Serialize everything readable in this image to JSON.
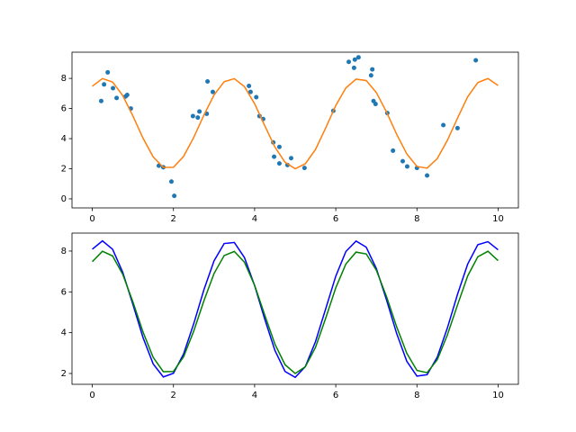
{
  "chart_data": [
    {
      "type": "line",
      "xlim": [
        -0.5,
        10.5
      ],
      "ylim": [
        -0.6,
        9.74
      ],
      "xticks": [
        0,
        2,
        4,
        6,
        8,
        10
      ],
      "yticks": [
        0,
        2,
        4,
        6,
        8
      ],
      "x": [
        0,
        0.25,
        0.5,
        0.75,
        1,
        1.25,
        1.5,
        1.75,
        2,
        2.25,
        2.5,
        2.75,
        3,
        3.25,
        3.5,
        3.75,
        4,
        4.25,
        4.5,
        4.75,
        5,
        5.25,
        5.5,
        5.75,
        6,
        6.25,
        6.5,
        6.75,
        7,
        7.25,
        7.5,
        7.75,
        8,
        8.25,
        8.5,
        8.75,
        9,
        9.25,
        9.5,
        9.75,
        10
      ],
      "series": [
        {
          "type": "scatter",
          "color": "#1f77b4",
          "x": [
            0.22,
            0.29,
            0.38,
            0.51,
            0.6,
            0.82,
            0.86,
            0.95,
            1.64,
            1.75,
            1.95,
            2.02,
            2.48,
            2.64,
            2.6,
            2.82,
            2.84,
            2.97,
            3.86,
            3.9,
            4.04,
            4.12,
            4.21,
            4.46,
            4.48,
            4.61,
            4.61,
            4.81,
            4.9,
            5.23,
            5.94,
            6.32,
            6.45,
            6.47,
            6.56,
            6.87,
            6.9,
            6.93,
            6.98,
            7.27,
            7.41,
            7.65,
            7.76,
            8.0,
            8.25,
            8.65,
            9.0,
            9.45
          ],
          "values": [
            6.5,
            7.6,
            8.4,
            7.35,
            6.7,
            6.8,
            6.9,
            6.0,
            2.2,
            2.1,
            1.15,
            0.2,
            5.5,
            5.8,
            5.4,
            5.65,
            7.8,
            7.1,
            7.5,
            7.1,
            6.75,
            5.5,
            5.3,
            3.75,
            2.8,
            3.45,
            2.35,
            2.25,
            2.7,
            2.05,
            5.85,
            9.1,
            8.7,
            9.25,
            9.4,
            8.2,
            8.6,
            6.5,
            6.3,
            5.7,
            3.2,
            2.5,
            2.15,
            2.05,
            1.55,
            4.9,
            4.7,
            9.2
          ]
        },
        {
          "type": "line",
          "color": "#ff7f0e",
          "values": [
            7.48,
            7.99,
            7.76,
            6.86,
            5.51,
            4.03,
            2.79,
            2.09,
            2.1,
            2.82,
            4.08,
            5.56,
            6.9,
            7.78,
            7.98,
            7.45,
            6.32,
            4.86,
            3.44,
            2.43,
            2.0,
            2.33,
            3.28,
            4.7,
            6.2,
            7.37,
            7.95,
            7.86,
            7.06,
            5.77,
            4.29,
            2.99,
            2.15,
            2.04,
            2.67,
            3.89,
            5.36,
            6.78,
            7.72,
            7.99,
            7.53
          ]
        }
      ]
    },
    {
      "type": "line",
      "xlim": [
        -0.5,
        10.5
      ],
      "ylim": [
        1.47,
        8.88
      ],
      "xticks": [
        0,
        2,
        4,
        6,
        8,
        10
      ],
      "yticks": [
        2,
        4,
        6,
        8
      ],
      "x": [
        0,
        0.25,
        0.5,
        0.75,
        1,
        1.25,
        1.5,
        1.75,
        2,
        2.25,
        2.5,
        2.75,
        3,
        3.25,
        3.5,
        3.75,
        4,
        4.25,
        4.5,
        4.75,
        5,
        5.25,
        5.5,
        5.75,
        6,
        6.25,
        6.5,
        6.75,
        7,
        7.25,
        7.5,
        7.75,
        8,
        8.25,
        8.5,
        8.75,
        9,
        9.25,
        9.5,
        9.75,
        10
      ],
      "series": [
        {
          "type": "line",
          "color": "#0000ff",
          "values": [
            8.09,
            8.5,
            8.09,
            6.96,
            5.39,
            3.76,
            2.47,
            1.83,
            2.01,
            2.96,
            4.44,
            6.1,
            7.52,
            8.37,
            8.42,
            7.68,
            6.31,
            4.66,
            3.13,
            2.1,
            1.81,
            2.34,
            3.56,
            5.16,
            6.77,
            7.98,
            8.49,
            8.19,
            7.14,
            5.61,
            3.96,
            2.6,
            1.87,
            1.94,
            2.8,
            4.23,
            5.88,
            7.36,
            8.31,
            8.46,
            8.06
          ]
        },
        {
          "type": "line",
          "color": "#008000",
          "values": [
            7.48,
            7.99,
            7.76,
            6.86,
            5.51,
            4.03,
            2.79,
            2.09,
            2.1,
            2.82,
            4.08,
            5.56,
            6.9,
            7.78,
            7.98,
            7.45,
            6.32,
            4.86,
            3.44,
            2.43,
            2.0,
            2.33,
            3.28,
            4.7,
            6.2,
            7.37,
            7.95,
            7.86,
            7.06,
            5.77,
            4.29,
            2.99,
            2.15,
            2.04,
            2.67,
            3.89,
            5.36,
            6.78,
            7.72,
            7.99,
            7.53
          ]
        }
      ]
    }
  ]
}
